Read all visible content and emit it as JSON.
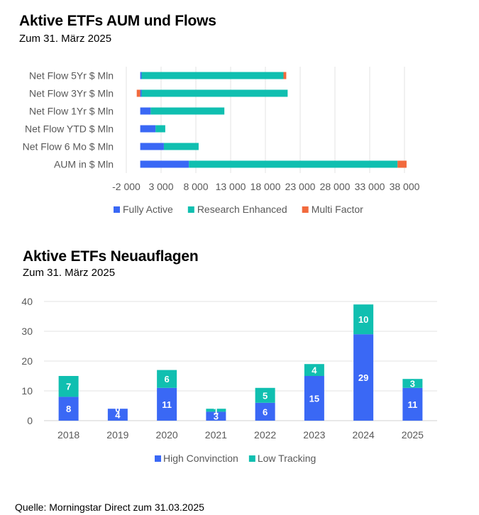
{
  "chart_data": [
    {
      "type": "bar",
      "orientation": "horizontal",
      "stacked": true,
      "title": "Aktive ETFs AUM und Flows",
      "subtitle": "Zum 31. März 2025",
      "categories": [
        "Net Flow 5Yr $ Mln",
        "Net Flow 3Yr $ Mln",
        "Net Flow 1Yr $ Mln",
        "Net Flow YTD $ Mln",
        "Net Flow 6 Mo $ Mln",
        "AUM in $ Mln"
      ],
      "series": [
        {
          "name": "Fully Active",
          "color": "#3A68F5",
          "values": [
            200,
            200,
            1500,
            2200,
            3400,
            7000
          ]
        },
        {
          "name": "Research Enhanced",
          "color": "#10BFB0",
          "values": [
            20400,
            21000,
            10600,
            1400,
            5000,
            30000
          ]
        },
        {
          "name": "Multi Factor",
          "color": "#F26A3D",
          "values": [
            400,
            -500,
            0,
            0,
            0,
            1300
          ]
        }
      ],
      "xlim": [
        -2000,
        38000
      ],
      "xticks": [
        "-2 000",
        "3 000",
        "8 000",
        "13 000",
        "18 000",
        "23 000",
        "28 000",
        "33 000",
        "38 000"
      ],
      "grid": true,
      "legend": "bottom"
    },
    {
      "type": "bar",
      "stacked": true,
      "title": "Aktive ETFs Neuauflagen",
      "subtitle": "Zum 31. März 2025",
      "categories": [
        "2018",
        "2019",
        "2020",
        "2021",
        "2022",
        "2023",
        "2024",
        "2025"
      ],
      "series": [
        {
          "name": "High Convinction",
          "color": "#3A68F5",
          "values": [
            8,
            4,
            11,
            3,
            6,
            15,
            29,
            11
          ]
        },
        {
          "name": "Low Tracking",
          "color": "#10BFB0",
          "values": [
            7,
            0,
            6,
            1,
            5,
            4,
            10,
            3
          ]
        }
      ],
      "ylim": [
        0,
        40
      ],
      "yticks": [
        "0",
        "10",
        "20",
        "30",
        "40"
      ],
      "grid": true,
      "legend": "bottom"
    }
  ],
  "source": "Quelle: Morningstar Direct zum 31.03.2025"
}
